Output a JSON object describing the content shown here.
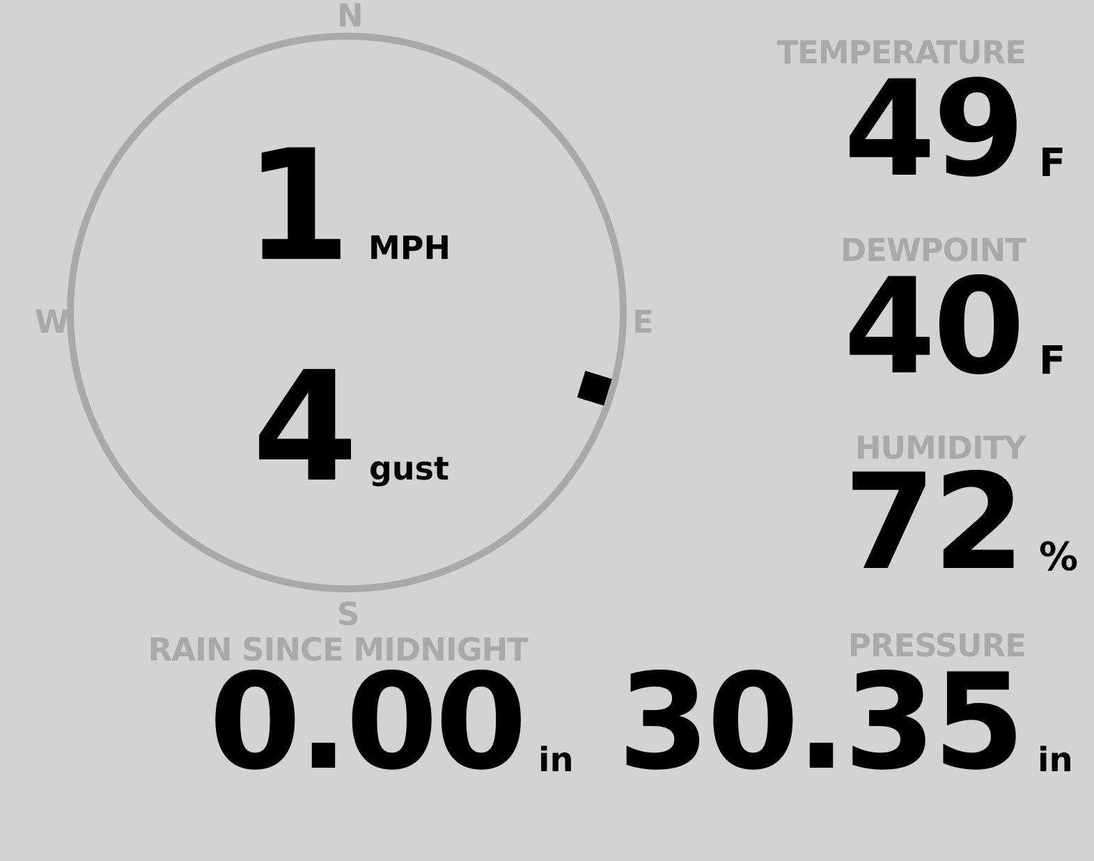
{
  "colors": {
    "background": "#d3d3d3",
    "label": "#a9a9a9",
    "value": "#000000"
  },
  "wind": {
    "compass": {
      "north": "N",
      "east": "E",
      "south": "S",
      "west": "W"
    },
    "direction_deg": 107,
    "speed": "1",
    "speed_unit": "MPH",
    "gust": "4",
    "gust_label": "gust"
  },
  "temperature": {
    "label": "TEMPERATURE",
    "value": "49",
    "unit": "F"
  },
  "dewpoint": {
    "label": "DEWPOINT",
    "value": "40",
    "unit": "F"
  },
  "humidity": {
    "label": "HUMIDITY",
    "value": "72",
    "unit": "%"
  },
  "pressure": {
    "label": "PRESSURE",
    "value": "30.35",
    "unit": "in"
  },
  "rain": {
    "label": "RAIN SINCE MIDNIGHT",
    "value": "0.00",
    "unit": "in"
  }
}
